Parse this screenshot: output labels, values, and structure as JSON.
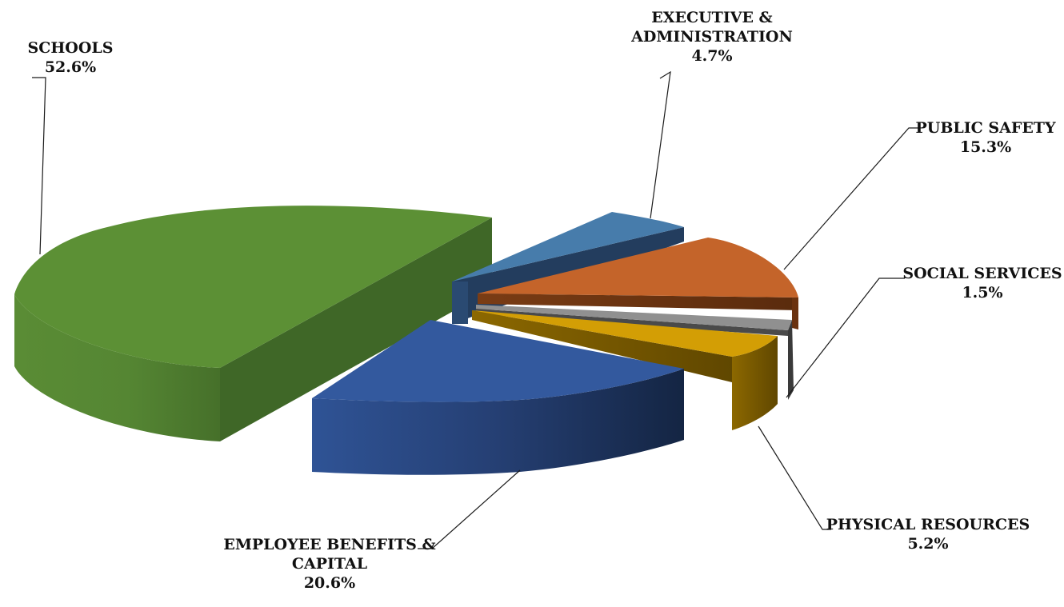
{
  "chart_data": {
    "type": "pie",
    "style": "3d-exploded",
    "legend": "none",
    "slices": [
      {
        "label_lines": [
          "SCHOOLS"
        ],
        "value": 52.6,
        "value_label": "52.6%",
        "color": "#5c9035"
      },
      {
        "label_lines": [
          "EXECUTIVE &",
          "ADMINISTRATION"
        ],
        "value": 4.7,
        "value_label": "4.7%",
        "color": "#477cab"
      },
      {
        "label_lines": [
          "PUBLIC SAFETY"
        ],
        "value": 15.3,
        "value_label": "15.3%",
        "color": "#c4642a"
      },
      {
        "label_lines": [
          "SOCIAL SERVICES"
        ],
        "value": 1.5,
        "value_label": "1.5%",
        "color": "#909090"
      },
      {
        "label_lines": [
          "PHYSICAL RESOURCES"
        ],
        "value": 5.2,
        "value_label": "5.2%",
        "color": "#d39e05"
      },
      {
        "label_lines": [
          "EMPLOYEE BENEFITS &",
          "CAPITAL"
        ],
        "value": 20.6,
        "value_label": "20.6%",
        "color": "#33599e"
      }
    ]
  }
}
